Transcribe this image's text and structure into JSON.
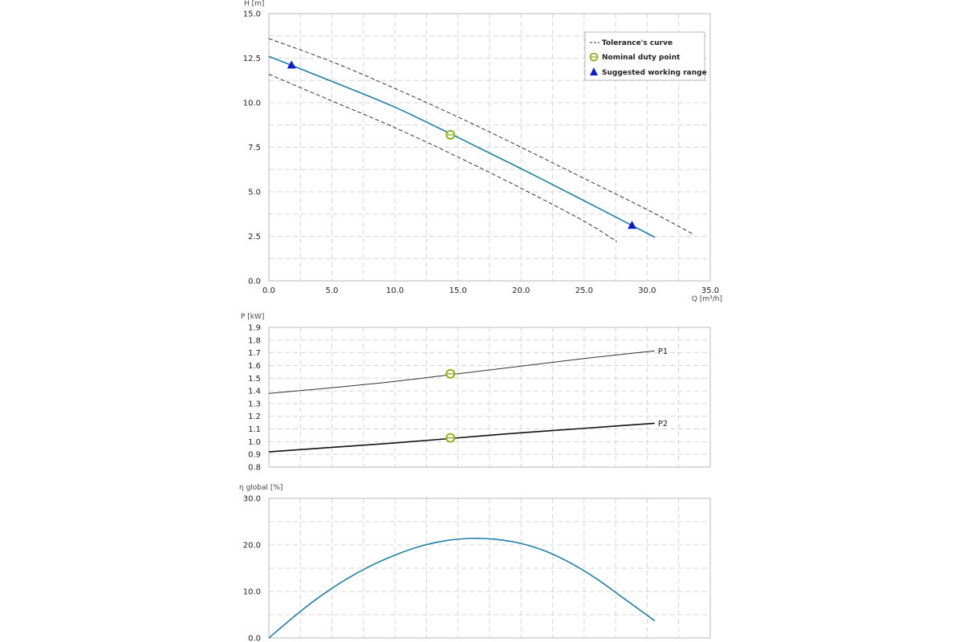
{
  "chart_data": [
    {
      "id": "head",
      "type": "line",
      "ylabel": "H [m]",
      "xlabel": "Q [m³/h]",
      "xlim": [
        0,
        35
      ],
      "ylim": [
        0,
        15
      ],
      "x_ticks": [
        "0.0",
        "5.0",
        "10.0",
        "15.0",
        "20.0",
        "25.0",
        "30.0",
        "35.0"
      ],
      "y_ticks": [
        "0.0",
        "2.5",
        "5.0",
        "7.5",
        "10.0",
        "12.5",
        "15.0"
      ],
      "grid": true,
      "legend": {
        "placement": "top-right",
        "entries": [
          "Tolerance's curve",
          "Nominal duty point",
          "Suggested working range"
        ]
      },
      "series": [
        {
          "role": "curve",
          "color": "#1f7fa6",
          "x": [
            0,
            5,
            10,
            15,
            20,
            25,
            30.6
          ],
          "y": [
            12.6,
            11.2,
            9.75,
            8.05,
            6.3,
            4.5,
            2.45
          ]
        },
        {
          "role": "tolerance-upper",
          "color": "#333333",
          "x": [
            0,
            5,
            10,
            15,
            20,
            25,
            30,
            33.7
          ],
          "y": [
            13.6,
            12.3,
            10.8,
            9.2,
            7.5,
            5.75,
            4.0,
            2.6
          ]
        },
        {
          "role": "tolerance-lower",
          "color": "#333333",
          "x": [
            0,
            5,
            10,
            15,
            20,
            25,
            27.6
          ],
          "y": [
            11.6,
            10.1,
            8.6,
            6.95,
            5.2,
            3.35,
            2.2
          ]
        }
      ],
      "nominal_point": {
        "x": 14.4,
        "y": 8.2,
        "color": "#8db31e"
      },
      "working_range_points": [
        {
          "x": 1.8,
          "y": 12.1,
          "color": "#0a1ccc"
        },
        {
          "x": 28.8,
          "y": 3.1,
          "color": "#0a1ccc"
        }
      ]
    },
    {
      "id": "power",
      "type": "line",
      "ylabel": "P [kW]",
      "xlim": [
        0,
        35
      ],
      "ylim": [
        0.8,
        1.9
      ],
      "y_ticks": [
        "0.8",
        "0.9",
        "1.0",
        "1.1",
        "1.2",
        "1.3",
        "1.4",
        "1.5",
        "1.6",
        "1.7",
        "1.8",
        "1.9"
      ],
      "grid": true,
      "series": [
        {
          "name": "P1",
          "color": "#333333",
          "width": 1,
          "x": [
            0,
            5,
            10,
            15,
            20,
            25,
            30.6
          ],
          "y": [
            1.38,
            1.425,
            1.475,
            1.535,
            1.595,
            1.655,
            1.715
          ]
        },
        {
          "name": "P2",
          "color": "#111111",
          "width": 1.6,
          "x": [
            0,
            5,
            10,
            15,
            20,
            25,
            30.6
          ],
          "y": [
            0.92,
            0.955,
            0.99,
            1.03,
            1.07,
            1.105,
            1.145
          ]
        }
      ],
      "nominal_points": [
        {
          "x": 14.4,
          "y": 1.535,
          "color": "#8db31e"
        },
        {
          "x": 14.4,
          "y": 1.03,
          "color": "#8db31e"
        }
      ]
    },
    {
      "id": "efficiency",
      "type": "line",
      "ylabel": "η global [%]",
      "xlim": [
        0,
        35
      ],
      "ylim": [
        0,
        30
      ],
      "y_ticks": [
        "0.0",
        "10.0",
        "20.0",
        "30.0"
      ],
      "grid": true,
      "series": [
        {
          "role": "efficiency",
          "color": "#1f7fa6",
          "x": [
            0,
            2,
            4,
            6,
            8,
            10,
            12,
            14,
            16,
            18,
            20,
            22,
            24,
            26,
            28,
            30.6
          ],
          "y": [
            0,
            4.6,
            8.8,
            12.4,
            15.4,
            17.8,
            19.7,
            20.9,
            21.4,
            21.2,
            20.3,
            18.6,
            16.0,
            12.7,
            8.8,
            3.7
          ]
        }
      ]
    }
  ]
}
